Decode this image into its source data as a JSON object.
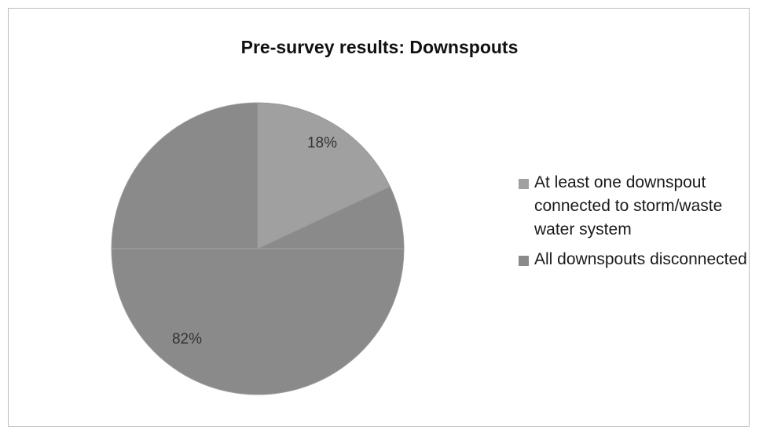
{
  "chart_data": {
    "type": "pie",
    "title": "Pre-survey results: Downspouts",
    "series": [
      {
        "name": "At least one downspout connected to storm/waste water system",
        "value": 18,
        "label": "18%",
        "color": "#a0a0a0"
      },
      {
        "name": "All downspouts disconnected",
        "value": 82,
        "label": "82%",
        "color": "#8a8a8a"
      }
    ],
    "legend_position": "right"
  }
}
